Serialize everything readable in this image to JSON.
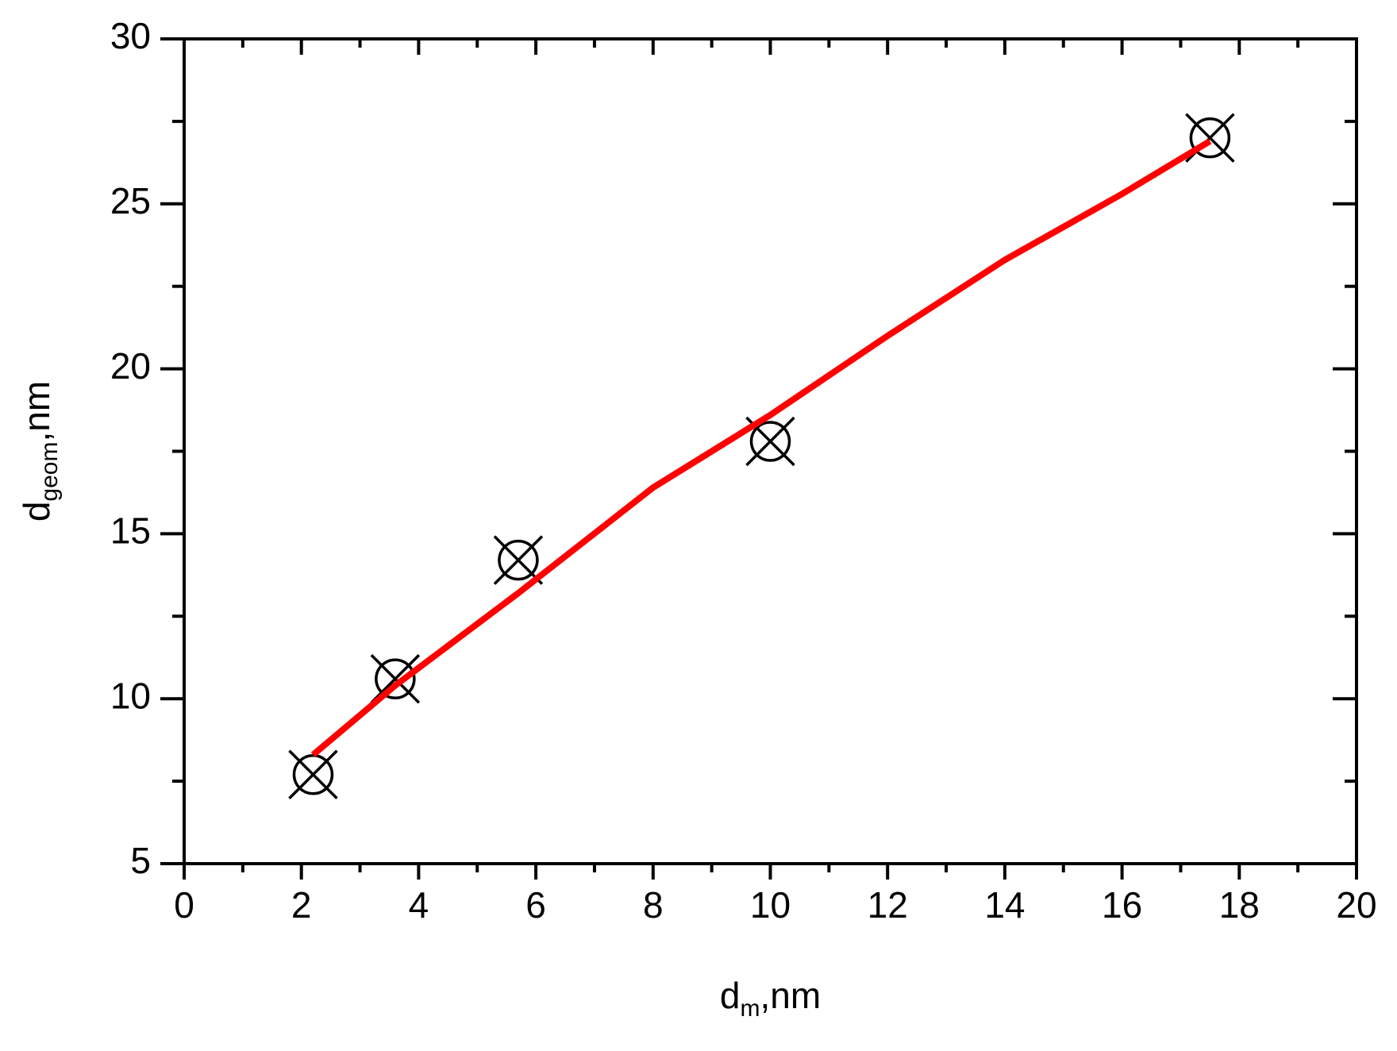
{
  "chart_data": {
    "type": "scatter",
    "x_label": {
      "main": "d",
      "sub": "m",
      "rest": ",nm"
    },
    "y_label": {
      "main": "d",
      "sub": "geom",
      "rest": ",nm"
    },
    "xlim": [
      0,
      20
    ],
    "ylim": [
      5,
      30
    ],
    "xticks": [
      0,
      2,
      4,
      6,
      8,
      10,
      12,
      14,
      16,
      18,
      20
    ],
    "yticks": [
      5,
      10,
      15,
      20,
      25,
      30
    ],
    "xticks_minor": [
      1,
      3,
      5,
      7,
      9,
      11,
      13,
      15,
      17,
      19
    ],
    "yticks_minor": [
      7.5,
      12.5,
      17.5,
      22.5,
      27.5
    ],
    "series": [
      {
        "kind": "markers",
        "color": "#000000",
        "x": [
          2.2,
          3.6,
          5.7,
          10,
          17.5
        ],
        "values": [
          7.7,
          10.6,
          14.2,
          17.8,
          27
        ]
      },
      {
        "kind": "line",
        "color": "#ff0000",
        "x": [
          2.2,
          3.6,
          5.7,
          8,
          10,
          12,
          14,
          16,
          17.5
        ],
        "values": [
          8.3,
          10.4,
          13.2,
          16.4,
          18.6,
          21.0,
          23.3,
          25.3,
          26.9
        ]
      }
    ]
  }
}
